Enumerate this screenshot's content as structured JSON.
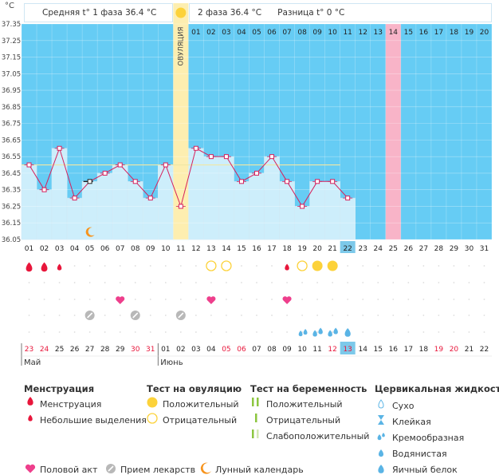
{
  "header": {
    "unit": "°C",
    "phase1_label": "Средняя t° 1 фаза",
    "phase1_value": "36.4 °C",
    "phase2_label": "2 фаза",
    "phase2_value": "36.4 °C",
    "diff_label": "Разница t°",
    "diff_value": "0 °C",
    "ovulation_label": "ОВУЛЯЦИЯ"
  },
  "chart_data": {
    "type": "line",
    "title": "",
    "ylabel": "°C",
    "ylim": [
      36.05,
      37.35
    ],
    "yticks": [
      "37.35",
      "37.25",
      "37.15",
      "37.05",
      "36.95",
      "36.85",
      "36.75",
      "36.65",
      "36.55",
      "36.45",
      "36.35",
      "36.25",
      "36.15",
      "36.05"
    ],
    "cycle_days": [
      "01",
      "02",
      "03",
      "04",
      "05",
      "06",
      "07",
      "08",
      "09",
      "10",
      "11",
      "12",
      "13",
      "14",
      "15",
      "16",
      "17",
      "18",
      "19",
      "20",
      "21",
      "22",
      "23",
      "24",
      "25",
      "26",
      "27",
      "28",
      "29",
      "30",
      "31"
    ],
    "top_phase2_days": [
      "01",
      "02",
      "03",
      "04",
      "05",
      "06",
      "07",
      "08",
      "09",
      "10",
      "11",
      "12",
      "13",
      "14",
      "15",
      "16",
      "17",
      "18",
      "19",
      "20"
    ],
    "temperatures": [
      36.5,
      36.35,
      36.6,
      36.3,
      36.4,
      36.45,
      36.5,
      36.4,
      36.3,
      36.5,
      36.25,
      36.6,
      36.55,
      36.55,
      36.4,
      36.45,
      36.55,
      36.4,
      36.25,
      36.4,
      36.4,
      36.3
    ],
    "excluded_day": 5,
    "cover_line": 36.5,
    "ovulation_day": 11,
    "expected_menses_day": 25,
    "current_day": 22,
    "cycle_length": 31,
    "marks": {
      "menstruation": [
        1,
        2
      ],
      "light_spotting": [
        3,
        18
      ],
      "ovulation_positive": [
        20,
        21
      ],
      "ovulation_negative": [
        13,
        14,
        19
      ],
      "intercourse": [
        7,
        13,
        18
      ],
      "medication": [
        5,
        8,
        11
      ],
      "moon": [
        5
      ],
      "cervical_watery": [
        19,
        20,
        21
      ],
      "cervical_eggwhite": [
        22
      ]
    },
    "calendar_dates": [
      "23",
      "24",
      "25",
      "26",
      "27",
      "28",
      "29",
      "30",
      "31",
      "01",
      "02",
      "03",
      "04",
      "05",
      "06",
      "07",
      "08",
      "09",
      "10",
      "11",
      "12",
      "13",
      "14",
      "15",
      "16",
      "17",
      "18",
      "19",
      "20",
      "21",
      "22"
    ],
    "calendar_weekend_red": [
      0,
      1,
      7,
      8,
      13,
      14,
      20,
      21,
      27,
      28
    ],
    "calendar_today_index": 21,
    "month_labels": [
      {
        "label": "Май",
        "index": 0
      },
      {
        "label": "Июнь",
        "index": 9
      }
    ]
  },
  "legend": {
    "menses": {
      "title": "Менструация",
      "items": [
        "Менструация",
        "Небольшие выделения"
      ]
    },
    "ovulation_test": {
      "title": "Тест на овуляцию",
      "items": [
        "Положительный",
        "Отрицательный"
      ]
    },
    "pregnancy_test": {
      "title": "Тест на беременность",
      "items": [
        "Положительный",
        "Отрицательный",
        "Слабоположительный"
      ]
    },
    "cervical": {
      "title": "Цервикальная жидкость",
      "items": [
        "Сухо",
        "Клейкая",
        "Кремообразная",
        "Водянистая",
        "Яичный белок"
      ]
    },
    "bottom": [
      "Половой акт",
      "Прием лекарств",
      "Лунный календарь"
    ]
  },
  "colors": {
    "sky": "#66ccf4",
    "bar": "#cdeefb",
    "line": "#d6205c",
    "ovulation": "#fdeeb0",
    "expected": "#f8b4c8",
    "red": "#e8163b",
    "yellow": "#fcd23a",
    "pink": "#ee3f8c",
    "gray": "#b8b8b8",
    "orange": "#f7941d",
    "drop": "#5ab4e5",
    "green": "#8cc63f"
  }
}
